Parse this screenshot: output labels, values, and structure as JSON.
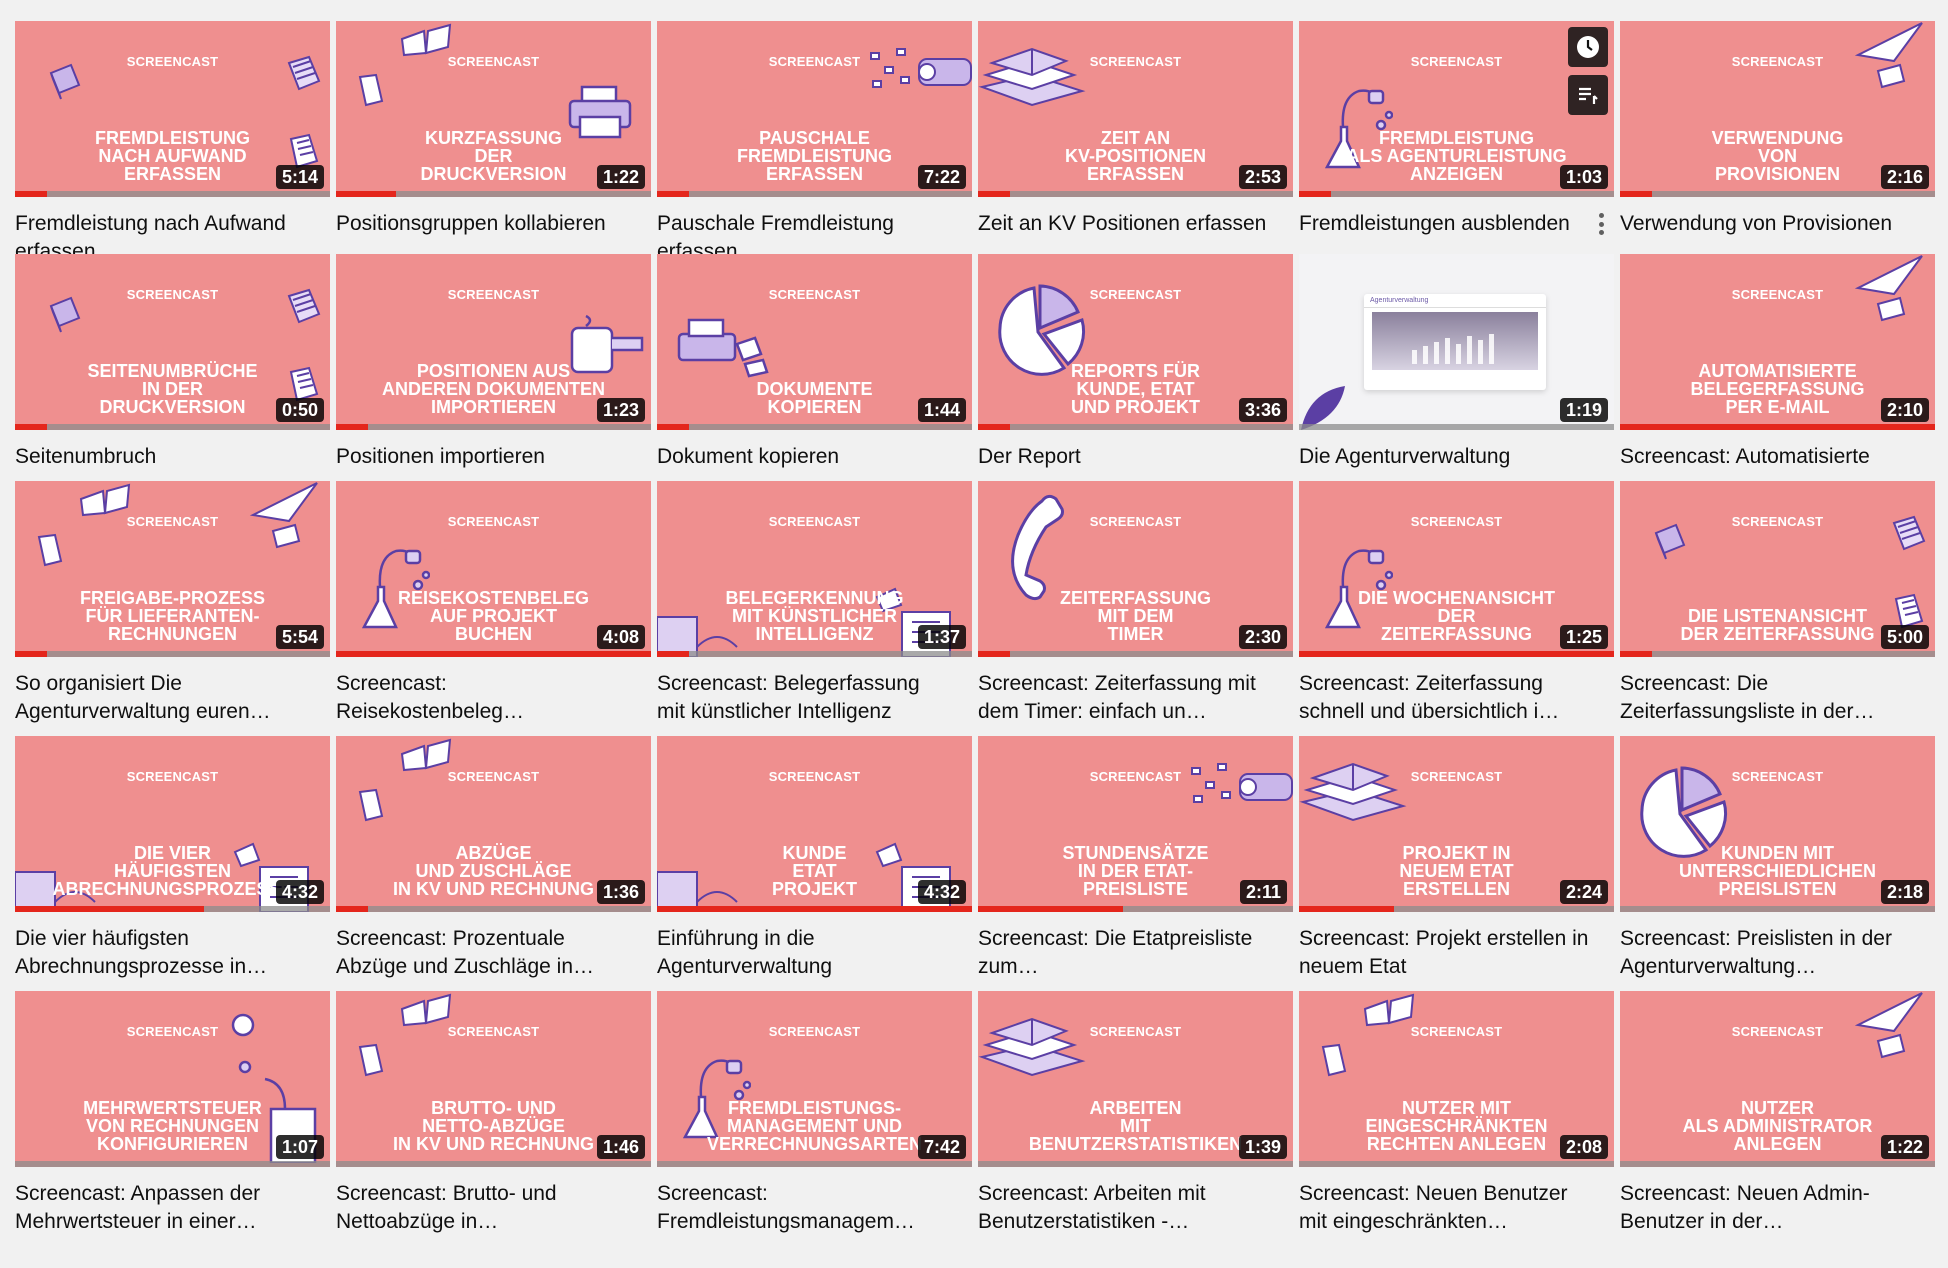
{
  "screencast_label": "SCREENCAST",
  "colors": {
    "thumb_bg": "#ef8f8f",
    "accent": "#e4261c",
    "illustration": "#5b3fa4"
  },
  "hover_actions": {
    "watch_later_icon": "clock-icon",
    "add_queue_icon": "queue-icon",
    "menu_icon": "more-vertical-icon"
  },
  "videos": [
    {
      "heading": "FREMDLEISTUNG\nNACH AUFWAND\nERFASSEN",
      "duration": "5:14",
      "title": "Fremdleistung nach Aufwand erfassen",
      "progress": 0.1,
      "deco": [
        "book-a",
        "docs-a"
      ]
    },
    {
      "heading": "KURZFASSUNG\nDER\nDRUCKVERSION",
      "duration": "1:22",
      "title": "Positionsgruppen kollabieren",
      "progress": 0.19,
      "deco": [
        "printer",
        "book-top"
      ]
    },
    {
      "heading": "PAUSCHALE\nFREMDLEISTUNG\nERFASSEN",
      "duration": "7:22",
      "title": "Pauschale Fremdleistung erfassen",
      "progress": 0.1,
      "deco": [
        "machine"
      ]
    },
    {
      "heading": "ZEIT AN\nKV-POSITIONEN\nERFASSEN",
      "duration": "2:53",
      "title": "Zeit an KV Positionen erfassen",
      "progress": 0.1,
      "deco": [
        "books-stack"
      ]
    },
    {
      "heading": "FREMDLEISTUNG\nALS AGENTURLEISTUNG\nANZEIGEN",
      "duration": "1:03",
      "title": "Fremdleistungen ausblenden",
      "progress": 0.1,
      "deco": [
        "flask"
      ],
      "hovered": true
    },
    {
      "heading": "VERWENDUNG\nVON\nPROVISIONEN",
      "duration": "2:16",
      "title": "Verwendung von Provisionen",
      "progress": 0.1,
      "deco": [
        "plane"
      ]
    },
    {
      "heading": "SEITENUMBRÜCHE\nIN DER\nDRUCKVERSION",
      "duration": "0:50",
      "title": "Seitenumbruch",
      "progress": 0.1,
      "deco": [
        "book-a",
        "docs-a"
      ]
    },
    {
      "heading": "POSITIONEN AUS\nANDEREN DOKUMENTEN\nIMPORTIEREN",
      "duration": "1:23",
      "title": "Positionen importieren",
      "progress": 0.1,
      "deco": [
        "mug"
      ]
    },
    {
      "heading": "DOKUMENTE\nKOPIEREN",
      "duration": "1:44",
      "title": "Dokument kopieren",
      "progress": 0.1,
      "deco": [
        "printer-left"
      ]
    },
    {
      "heading": "REPORTS FÜR\nKUNDE, ETAT\nUND PROJEKT",
      "duration": "3:36",
      "title": "Der Report",
      "progress": 0.1,
      "deco": [
        "pie"
      ]
    },
    {
      "heading": "",
      "duration": "1:19",
      "title": "Die Agenturverwaltung",
      "progress": 0.0,
      "deco": [
        "agency"
      ],
      "screenshot_text": "Agenturverwaltung"
    },
    {
      "heading": "AUTOMATISIERTE\nBELEGERFASSUNG\nPER E-MAIL",
      "duration": "2:10",
      "title": "Screencast: Automatisierte",
      "progress": 1.0,
      "deco": [
        "plane"
      ]
    },
    {
      "heading": "FREIGABE-PROZESS\nFÜR LIEFERANTEN-\nRECHNUNGEN",
      "duration": "5:54",
      "title": "So organisiert Die Agenturverwaltung euren…",
      "progress": 0.1,
      "deco": [
        "book-top",
        "plane"
      ]
    },
    {
      "heading": "REISEKOSTENBELEG\nAUF PROJEKT\nBUCHEN",
      "duration": "4:08",
      "title": "Screencast: Reisekostenbeleg…",
      "progress": 1.0,
      "deco": [
        "flask"
      ]
    },
    {
      "heading": "BELEGERKENNUNG\nMIT KÜNSTLICHER\nINTELLIGENZ",
      "duration": "1:37",
      "title": "Screencast: Belegerfassung mit künstlicher Intelligenz",
      "progress": 0.1,
      "deco": [
        "machine-low"
      ]
    },
    {
      "heading": "ZEITERFASSUNG\nMIT DEM\nTIMER",
      "duration": "2:30",
      "title": "Screencast: Zeiterfassung mit dem Timer: einfach un…",
      "progress": 0.1,
      "deco": [
        "phone"
      ]
    },
    {
      "heading": "DIE WOCHENANSICHT\nDER\nZEITERFASSUNG",
      "duration": "1:25",
      "title": "Screencast: Zeiterfassung schnell und übersichtlich i…",
      "progress": 1.0,
      "deco": [
        "flask"
      ]
    },
    {
      "heading": "DIE LISTENANSICHT\nDER ZEITERFASSUNG",
      "duration": "5:00",
      "title": "Screencast: Die Zeiterfassungsliste in der…",
      "progress": 0.1,
      "deco": [
        "book-a",
        "docs-a"
      ]
    },
    {
      "heading": "DIE VIER\nHÄUFIGSTEN\nABRECHNUNGSPROZESSE",
      "duration": "4:32",
      "title": "Die vier häufigsten Abrechnungsprozesse in…",
      "progress": 0.6,
      "deco": [
        "machine-low"
      ]
    },
    {
      "heading": "ABZÜGE\nUND ZUSCHLÄGE\nIN KV UND RECHNUNG",
      "duration": "1:36",
      "title": "Screencast: Prozentuale Abzüge und Zuschläge in…",
      "progress": 0.1,
      "deco": [
        "book-top"
      ]
    },
    {
      "heading": "KUNDE\nETAT\nPROJEKT",
      "duration": "4:32",
      "title": "Einführung in die Agenturverwaltung",
      "progress": 1.0,
      "deco": [
        "machine-low"
      ]
    },
    {
      "heading": "STUNDENSÄTZE\nIN DER ETAT-\nPREISLISTE",
      "duration": "2:11",
      "title": "Screencast: Die Etatpreisliste zum…",
      "progress": 0.46,
      "deco": [
        "machine"
      ]
    },
    {
      "heading": "PROJEKT IN\nNEUEM ETAT\nERSTELLEN",
      "duration": "2:24",
      "title": "Screencast: Projekt erstellen in neuem Etat",
      "progress": 0.3,
      "deco": [
        "books-stack"
      ]
    },
    {
      "heading": "KUNDEN MIT\nUNTERSCHIEDLICHEN\nPREISLISTEN",
      "duration": "2:18",
      "title": "Screencast: Preislisten in der Agenturverwaltung…",
      "progress": 0.0,
      "deco": [
        "pie"
      ]
    },
    {
      "heading": "MEHRWERTSTEUER\nVON RECHNUNGEN\nKONFIGURIEREN",
      "duration": "1:07",
      "title": "Screencast: Anpassen der Mehrwertsteuer in einer…",
      "progress": 0.0,
      "deco": [
        "flask-right"
      ]
    },
    {
      "heading": "BRUTTO- UND\nNETTO-ABZÜGE\nIN KV UND RECHNUNG",
      "duration": "1:46",
      "title": "Screencast: Brutto- und Nettoabzüge in…",
      "progress": 0.0,
      "deco": [
        "book-top"
      ]
    },
    {
      "heading": "FREMDLEISTUNGS-\nMANAGEMENT UND\nVERRECHNUNGSARTEN",
      "duration": "7:42",
      "title": "Screencast: Fremdleistungsmanagem…",
      "progress": 0.0,
      "deco": [
        "flask"
      ]
    },
    {
      "heading": "ARBEITEN\nMIT\nBENUTZERSTATISTIKEN",
      "duration": "1:39",
      "title": "Screencast: Arbeiten mit Benutzerstatistiken -…",
      "progress": 0.0,
      "deco": [
        "books-stack"
      ]
    },
    {
      "heading": "NUTZER MIT\nEINGESCHRÄNKTEN\nRECHTEN ANLEGEN",
      "duration": "2:08",
      "title": "Screencast: Neuen Benutzer mit eingeschränkten…",
      "progress": 0.0,
      "deco": [
        "book-top"
      ]
    },
    {
      "heading": "NUTZER\nALS ADMINISTRATOR\nANLEGEN",
      "duration": "1:22",
      "title": "Screencast: Neuen Admin-Benutzer in der…",
      "progress": 0.0,
      "deco": [
        "plane"
      ]
    }
  ]
}
